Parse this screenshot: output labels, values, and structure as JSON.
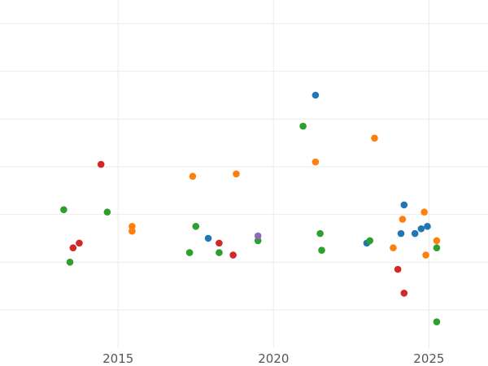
{
  "chart_data": {
    "type": "scatter",
    "title": "",
    "xlabel": "",
    "ylabel": "",
    "xlim": [
      2011.2,
      2026.9
    ],
    "ylim": [
      0,
      13.5
    ],
    "x_ticks": [
      2015,
      2020,
      2025
    ],
    "x_tick_labels": [
      "2015",
      "2020",
      "2025"
    ],
    "y_gridlines": [
      1.5,
      3.5,
      5.5,
      7.5,
      9.5,
      11.5,
      13.5
    ],
    "x_gridlines": [
      2015,
      2020,
      2025
    ],
    "grid": true,
    "legend": "none",
    "colors": {
      "blue": "#1f77b4",
      "orange": "#ff7f0e",
      "green": "#2ca02c",
      "red": "#d62728",
      "purple": "#9467bd"
    },
    "series": [
      {
        "color": "blue",
        "points": [
          [
            2021.35,
            10.5
          ],
          [
            2017.9,
            4.5
          ],
          [
            2023.0,
            4.3
          ],
          [
            2024.1,
            4.7
          ],
          [
            2024.2,
            5.9
          ],
          [
            2024.55,
            4.7
          ],
          [
            2024.75,
            4.9
          ],
          [
            2024.95,
            5.0
          ]
        ]
      },
      {
        "color": "orange",
        "points": [
          [
            2015.45,
            5.0
          ],
          [
            2015.45,
            4.8
          ],
          [
            2017.4,
            7.1
          ],
          [
            2018.8,
            7.2
          ],
          [
            2021.35,
            7.7
          ],
          [
            2023.25,
            8.7
          ],
          [
            2023.85,
            4.1
          ],
          [
            2024.15,
            5.3
          ],
          [
            2024.85,
            5.6
          ],
          [
            2024.9,
            3.8
          ],
          [
            2025.25,
            4.4
          ]
        ]
      },
      {
        "color": "green",
        "points": [
          [
            2013.25,
            5.7
          ],
          [
            2013.45,
            3.5
          ],
          [
            2014.65,
            5.6
          ],
          [
            2017.3,
            3.9
          ],
          [
            2017.5,
            5.0
          ],
          [
            2018.25,
            3.9
          ],
          [
            2019.5,
            4.4
          ],
          [
            2020.95,
            9.2
          ],
          [
            2021.5,
            4.7
          ],
          [
            2021.55,
            4.0
          ],
          [
            2023.1,
            4.4
          ],
          [
            2025.25,
            4.1
          ],
          [
            2025.25,
            1.0
          ]
        ]
      },
      {
        "color": "red",
        "points": [
          [
            2013.55,
            4.1
          ],
          [
            2013.75,
            4.3
          ],
          [
            2014.45,
            7.6
          ],
          [
            2018.25,
            4.3
          ],
          [
            2018.7,
            3.8
          ],
          [
            2024.0,
            3.2
          ],
          [
            2024.2,
            2.2
          ]
        ]
      },
      {
        "color": "purple",
        "points": [
          [
            2019.5,
            4.6
          ]
        ]
      }
    ]
  }
}
